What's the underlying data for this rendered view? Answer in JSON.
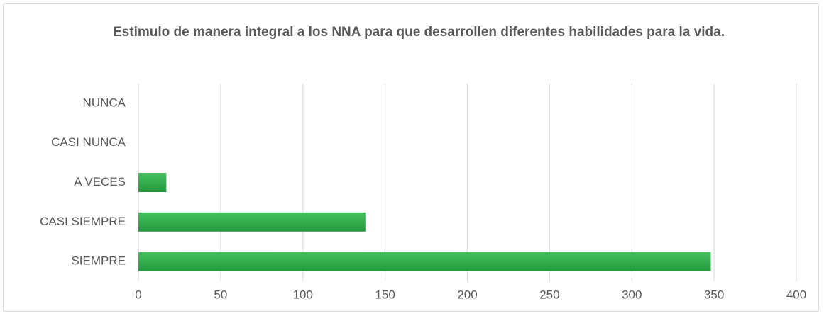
{
  "chart_data": {
    "type": "barh",
    "title": "Estimulo de manera integral a los NNA para que desarrollen diferentes habilidades para la vida.",
    "categories": [
      "NUNCA",
      "CASI NUNCA",
      "A VECES",
      "CASI SIEMPRE",
      "SIEMPRE"
    ],
    "values": [
      0,
      0,
      17,
      138,
      348
    ],
    "color": "#2eaa4a",
    "xlim": [
      0,
      400
    ],
    "xticks": [
      0,
      50,
      100,
      150,
      200,
      250,
      300,
      350,
      400
    ],
    "grid": true
  }
}
